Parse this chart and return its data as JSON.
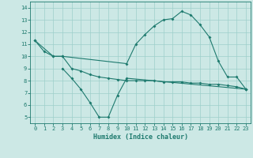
{
  "xlabel": "Humidex (Indice chaleur)",
  "background_color": "#cce8e5",
  "grid_color": "#9ecfca",
  "line_color": "#1e7a6e",
  "xlim": [
    -0.5,
    23.5
  ],
  "ylim": [
    4.5,
    14.5
  ],
  "xticks": [
    0,
    1,
    2,
    3,
    4,
    5,
    6,
    7,
    8,
    9,
    10,
    11,
    12,
    13,
    14,
    15,
    16,
    17,
    18,
    19,
    20,
    21,
    22,
    23
  ],
  "yticks": [
    5,
    6,
    7,
    8,
    9,
    10,
    11,
    12,
    13,
    14
  ],
  "series1_x": [
    0,
    1,
    2,
    3,
    10,
    11,
    12,
    13,
    14,
    15,
    16,
    17,
    18,
    19,
    20,
    21,
    22,
    23
  ],
  "series1_y": [
    11.3,
    10.4,
    10.0,
    10.0,
    9.4,
    11.0,
    11.8,
    12.5,
    13.0,
    13.1,
    13.7,
    13.4,
    12.6,
    11.6,
    9.6,
    8.3,
    8.3,
    7.3
  ],
  "series2_x": [
    0,
    2,
    3,
    4,
    5,
    6,
    7,
    8,
    9,
    10,
    11,
    12,
    13,
    14,
    15,
    16,
    17,
    18,
    19,
    20,
    21,
    22,
    23
  ],
  "series2_y": [
    11.3,
    10.0,
    10.0,
    9.0,
    8.8,
    8.5,
    8.3,
    8.2,
    8.1,
    8.0,
    8.0,
    8.0,
    8.0,
    7.9,
    7.9,
    7.9,
    7.8,
    7.8,
    7.7,
    7.7,
    7.6,
    7.5,
    7.3
  ],
  "series3_x": [
    3,
    4,
    5,
    6,
    7,
    8,
    9,
    10,
    23
  ],
  "series3_y": [
    9.0,
    8.2,
    7.3,
    6.2,
    5.0,
    5.0,
    6.8,
    8.2,
    7.3
  ]
}
